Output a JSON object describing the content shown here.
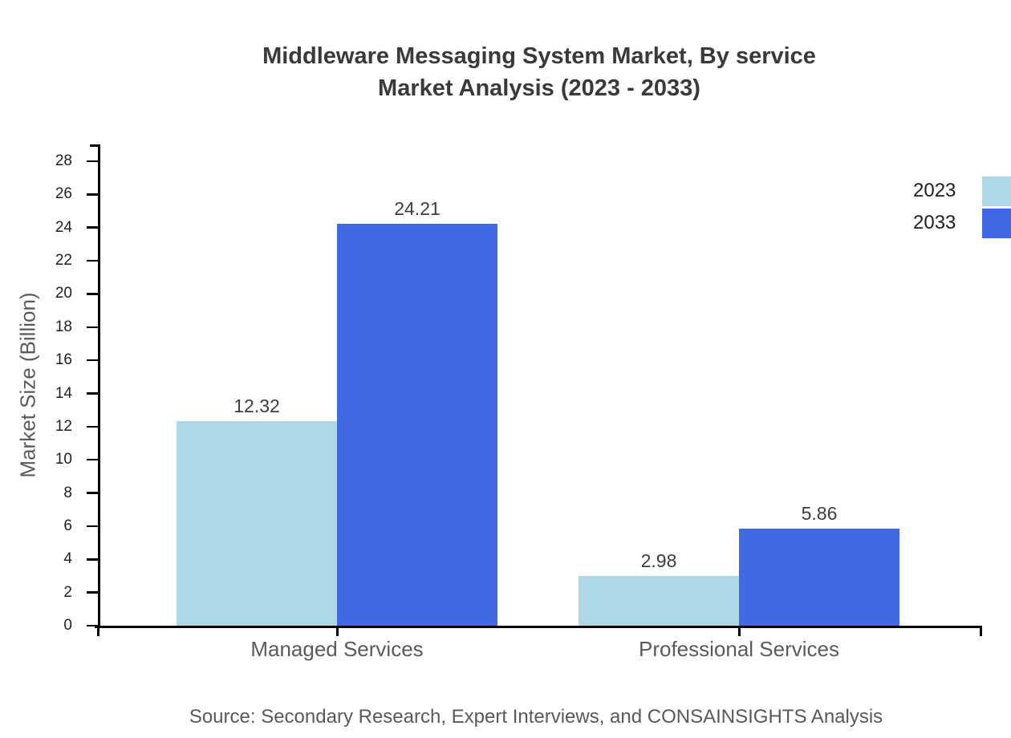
{
  "title": {
    "line1": "Middleware Messaging System Market, By service",
    "line2": "Market Analysis (2023 - 2033)"
  },
  "source": "Source: Secondary Research, Expert Interviews, and CONSAINSIGHTS Analysis",
  "colors": {
    "axis": "#000000",
    "title_text": "#3A3A3A",
    "tick_text": "#1F1F1F",
    "axis_label_text": "#5A5A5A",
    "value_label_text": "#3D3D3D",
    "source_text": "#595959"
  },
  "chart_data": {
    "type": "bar",
    "title": "Middleware Messaging System Market, By service Market Analysis (2023 - 2033)",
    "categories": [
      "Managed Services",
      "Professional Services"
    ],
    "series": [
      {
        "name": "2023",
        "color": "#ADD8E6",
        "values": [
          12.32,
          2.98
        ]
      },
      {
        "name": "2033",
        "color": "#4169E1",
        "values": [
          24.21,
          5.86
        ]
      }
    ],
    "xlabel": "",
    "ylabel": "Market Size (Billion)",
    "ylim": [
      0,
      28
    ],
    "yticks": [
      0,
      2,
      4,
      6,
      8,
      10,
      12,
      14,
      16,
      18,
      20,
      22,
      24,
      26,
      28
    ],
    "grid": false,
    "legend_position": "top-right",
    "value_labels": true
  }
}
